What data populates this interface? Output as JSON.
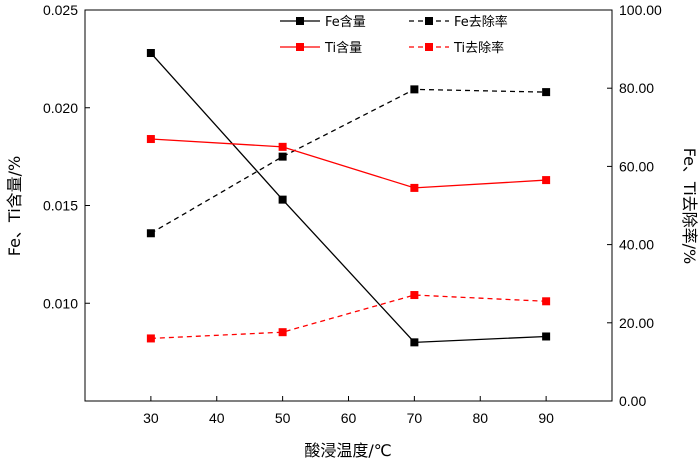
{
  "chart_data": {
    "type": "line",
    "x": [
      30,
      50,
      70,
      90
    ],
    "xlim": [
      20,
      100
    ],
    "xticks": [
      "30",
      "40",
      "50",
      "60",
      "70",
      "80",
      "90"
    ],
    "xlabel": "酸浸温度/℃",
    "ylabel_left": "Fe、Ti含量/%",
    "ylabel_right": "Fe、Ti去除率/%",
    "ylim_left": [
      0.005,
      0.025
    ],
    "ylim_right": [
      0,
      100
    ],
    "yticks_left": [
      "0.010",
      "0.015",
      "0.020",
      "0.025"
    ],
    "yticks_right": [
      "0.00",
      "20.00",
      "40.00",
      "60.00",
      "80.00",
      "100.00"
    ],
    "legend_position": "top-right",
    "series": [
      {
        "name": "Fe含量",
        "axis": "left",
        "color": "#000000",
        "style": "solid",
        "values": [
          0.0228,
          0.0153,
          0.008,
          0.0083
        ]
      },
      {
        "name": "Fe去除率",
        "axis": "right",
        "color": "#000000",
        "style": "dashed",
        "values": [
          42.9,
          62.5,
          79.7,
          79.0
        ]
      },
      {
        "name": "Ti含量",
        "axis": "left",
        "color": "#ff0000",
        "style": "solid",
        "values": [
          0.0184,
          0.018,
          0.0159,
          0.0163
        ]
      },
      {
        "name": "Ti去除率",
        "axis": "right",
        "color": "#ff0000",
        "style": "dashed",
        "values": [
          16.0,
          17.6,
          27.1,
          25.5
        ]
      }
    ]
  }
}
